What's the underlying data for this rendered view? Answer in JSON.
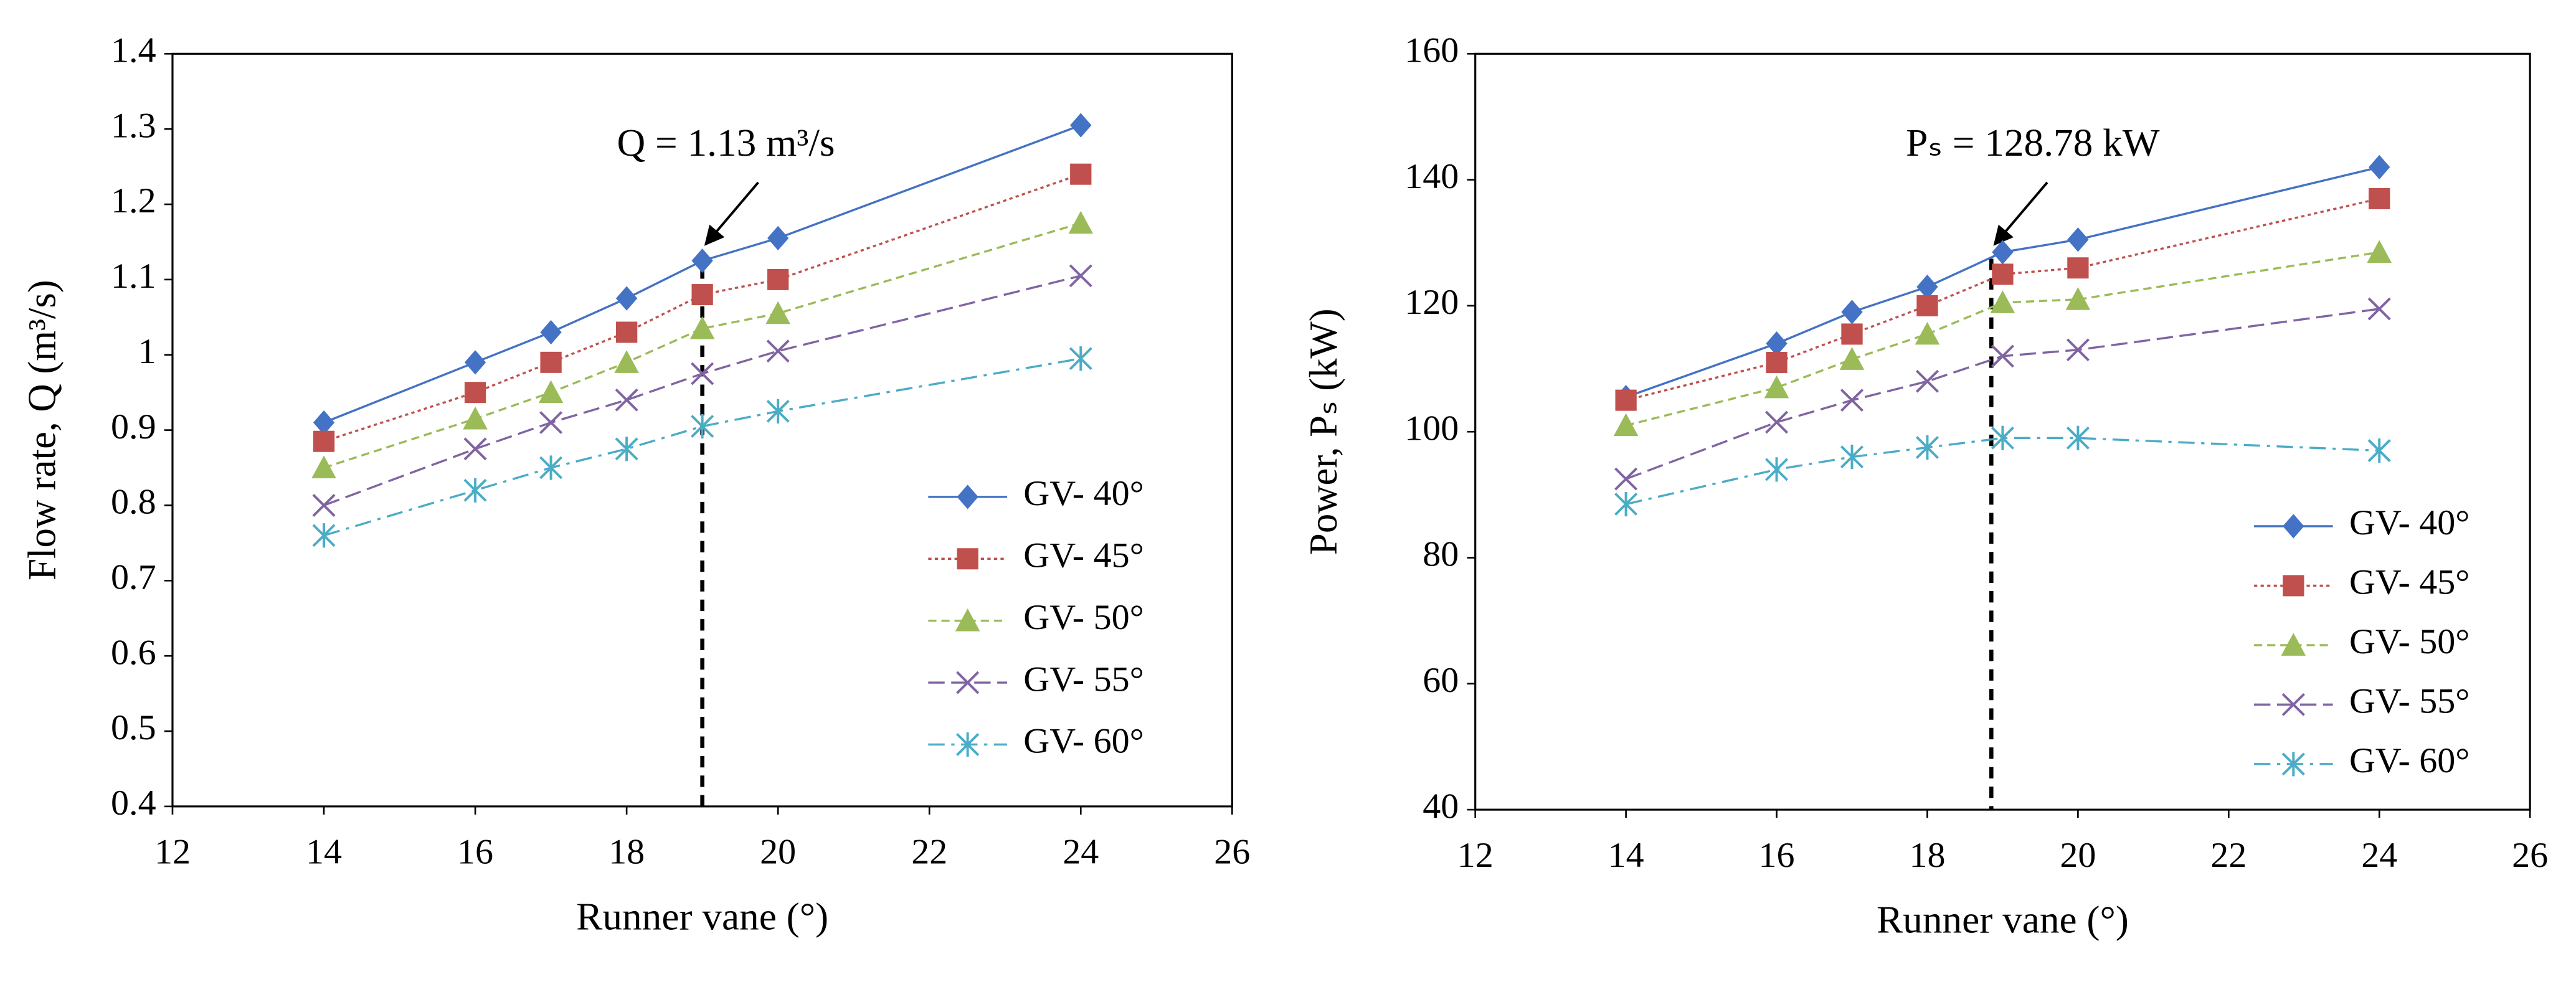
{
  "chart_data": [
    {
      "type": "line",
      "xlabel": "Runner vane (°)",
      "ylabel": "Flow rate, Q (m³/s)",
      "x": [
        14,
        16,
        17,
        18,
        19,
        20,
        24
      ],
      "xlim": [
        12,
        26
      ],
      "xticks": [
        12,
        14,
        16,
        18,
        20,
        22,
        24,
        26
      ],
      "ylim": [
        0.4,
        1.4
      ],
      "yticks": [
        0.4,
        0.5,
        0.6,
        0.7,
        0.8,
        0.9,
        1,
        1.1,
        1.2,
        1.3,
        1.4
      ],
      "annotation": {
        "text": "Q = 1.13 m³/s",
        "x": 19
      },
      "series": [
        {
          "name": "GV- 40°",
          "color": "#4472c4",
          "values": [
            0.91,
            0.99,
            1.03,
            1.075,
            1.125,
            1.155,
            1.305
          ]
        },
        {
          "name": "GV- 45°",
          "color": "#c0504d",
          "values": [
            0.885,
            0.95,
            0.99,
            1.03,
            1.08,
            1.1,
            1.24
          ]
        },
        {
          "name": "GV- 50°",
          "color": "#9bbb59",
          "values": [
            0.85,
            0.915,
            0.95,
            0.99,
            1.035,
            1.055,
            1.175
          ]
        },
        {
          "name": "GV- 55°",
          "color": "#8064a2",
          "values": [
            0.8,
            0.875,
            0.91,
            0.94,
            0.975,
            1.005,
            1.105
          ]
        },
        {
          "name": "GV- 60°",
          "color": "#4bacc6",
          "values": [
            0.76,
            0.82,
            0.85,
            0.875,
            0.905,
            0.925,
            0.995
          ]
        }
      ]
    },
    {
      "type": "line",
      "xlabel": "Runner vane (°)",
      "ylabel": "Power, Pₛ (kW)",
      "x": [
        14,
        16,
        17,
        18,
        19,
        20,
        24
      ],
      "xlim": [
        12,
        26
      ],
      "xticks": [
        12,
        14,
        16,
        18,
        20,
        22,
        24,
        26
      ],
      "ylim": [
        40,
        160
      ],
      "yticks": [
        40,
        60,
        80,
        100,
        120,
        140,
        160
      ],
      "annotation": {
        "text": "Pₛ = 128.78 kW",
        "x": 18.85
      },
      "series": [
        {
          "name": "GV- 40°",
          "color": "#4472c4",
          "values": [
            105.5,
            114,
            119,
            123,
            128.5,
            130.5,
            142
          ]
        },
        {
          "name": "GV- 45°",
          "color": "#c0504d",
          "values": [
            105,
            111,
            115.5,
            120,
            125,
            126,
            137
          ]
        },
        {
          "name": "GV- 50°",
          "color": "#9bbb59",
          "values": [
            101,
            107,
            111.5,
            115.5,
            120.5,
            121,
            128.5
          ]
        },
        {
          "name": "GV- 55°",
          "color": "#8064a2",
          "values": [
            92.5,
            101.5,
            105,
            108,
            112,
            113,
            119.5
          ]
        },
        {
          "name": "GV- 60°",
          "color": "#4bacc6",
          "values": [
            88.5,
            94,
            96,
            97.5,
            99,
            99,
            97
          ]
        }
      ]
    }
  ]
}
